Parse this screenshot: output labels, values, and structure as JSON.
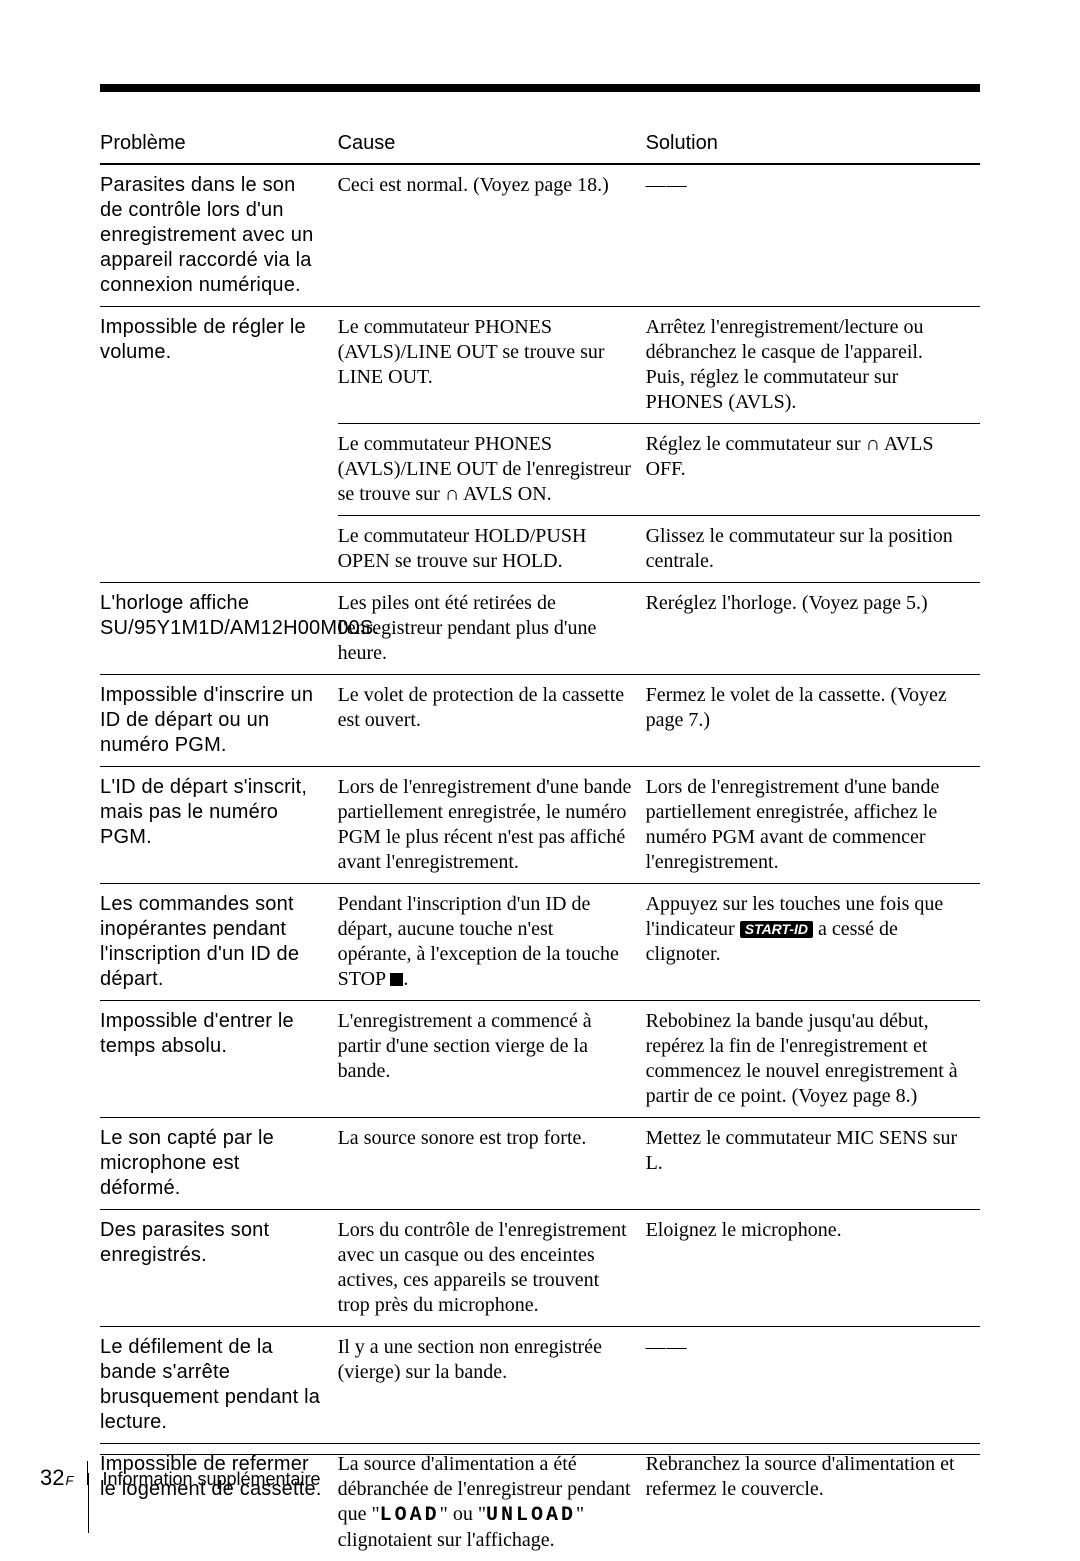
{
  "headers": {
    "c1": "Problème",
    "c2": "Cause",
    "c3": "Solution"
  },
  "dash": "——",
  "rows": [
    {
      "problem": "Parasites dans le son de contrôle lors d'un enregistrement avec un appareil raccordé via la connexion numérique.",
      "cause": "Ceci est normal. (Voyez page 18.)",
      "solution_dash": true
    },
    {
      "problem": "Impossible de régler le volume.",
      "subrows": [
        {
          "cause": "Le commutateur PHONES (AVLS)/LINE OUT se trouve sur LINE OUT.",
          "solution": "Arrêtez l'enregistrement/lecture ou débranchez le casque de l'appareil. Puis, réglez le commutateur sur PHONES (AVLS)."
        },
        {
          "cause_parts": [
            "Le commutateur PHONES (AVLS)/LINE OUT de l'enregistreur se trouve sur ",
            " AVLS ON."
          ],
          "cause_headphone": true,
          "solution_parts": [
            "Réglez le commutateur sur ",
            " AVLS OFF."
          ],
          "solution_headphone": true
        },
        {
          "cause": "Le commutateur HOLD/PUSH OPEN se trouve sur HOLD.",
          "solution": "Glissez le commutateur sur la position centrale."
        }
      ]
    },
    {
      "problem": "L'horloge affiche SU/95Y1M1D/AM12H00M00S.",
      "cause": "Les piles ont été retirées de l'enregistreur pendant plus d'une heure.",
      "solution": "Reréglez l'horloge. (Voyez page 5.)"
    },
    {
      "problem": "Impossible d'inscrire un ID de départ ou un numéro PGM.",
      "cause": "Le volet de protection de la cassette est ouvert.",
      "solution": "Fermez le volet de la cassette. (Voyez page 7.)"
    },
    {
      "problem": "L'ID de départ s'inscrit, mais pas le numéro PGM.",
      "cause": "Lors de l'enregistrement d'une bande partiellement enregistrée, le numéro PGM le plus récent n'est pas affiché avant l'enregistrement.",
      "solution": "Lors de l'enregistrement d'une bande partiellement enregistrée, affichez le numéro PGM avant de commencer l'enregistrement."
    },
    {
      "problem": "Les commandes sont inopérantes pendant l'inscription d'un ID de départ.",
      "cause_parts": [
        "Pendant l'inscription d'un ID de départ, aucune touche n'est opérante, à l'exception de la touche STOP ",
        "."
      ],
      "cause_stop": true,
      "solution_parts": [
        "Appuyez sur les touches une fois que l'indicateur ",
        " a cessé de clignoter."
      ],
      "solution_startid": true,
      "startid_text": "START-ID"
    },
    {
      "problem": "Impossible d'entrer le temps absolu.",
      "cause": "L'enregistrement a commencé à partir d'une section vierge de la bande.",
      "solution": "Rebobinez la bande jusqu'au début, repérez la fin de l'enregistrement et commencez le nouvel enregistrement à partir de ce point. (Voyez page 8.)"
    },
    {
      "problem": "Le son capté par le microphone est déformé.",
      "cause": "La source sonore est trop forte.",
      "solution": "Mettez le commutateur MIC SENS sur L."
    },
    {
      "problem": "Des parasites sont enregistrés.",
      "cause": "Lors du contrôle de l'enregistrement avec un casque ou des enceintes actives, ces appareils se trouvent trop près du microphone.",
      "solution": "Eloignez le microphone."
    },
    {
      "problem": "Le défilement de la bande s'arrête brusquement pendant la lecture.",
      "cause": "Il y a une section non enregistrée (vierge) sur la bande.",
      "solution_dash": true
    },
    {
      "problem": "Impossible de refermer le logement de cassette.",
      "cause_parts_seg": {
        "pre": "La source d'alimentation a été débranchée de l'enregistreur pendant que \"",
        "seg1": "LOAD",
        "mid": "\" ou \"",
        "seg2": "UNLOAD",
        "post": "\" clignotaient sur l'affichage."
      },
      "solution": "Rebranchez la source d'alimentation et refermez le couvercle."
    }
  ],
  "footer": {
    "page_num": "32",
    "page_sup": "F",
    "section": "Information supplémentaire"
  },
  "colors": {
    "text": "#000000",
    "bg": "#ffffff"
  }
}
